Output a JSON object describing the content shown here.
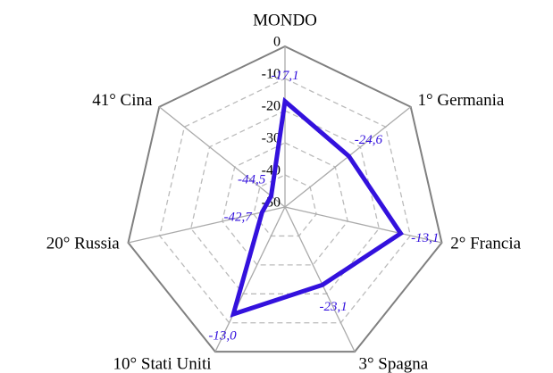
{
  "chart_data": {
    "type": "radar",
    "categories": [
      "MONDO",
      "1° Germania",
      "2° Francia",
      "3° Spagna",
      "10° Stati Uniti",
      "20° Russia",
      "41° Cina"
    ],
    "values": [
      -17.1,
      -24.6,
      -13.1,
      -23.1,
      -13.0,
      -42.7,
      -44.5
    ],
    "value_labels": [
      "-17,1",
      "-24,6",
      "-13,1",
      "-23,1",
      "-13,0",
      "-42,7",
      "-44,5"
    ],
    "color": "#3311dd",
    "rlim": [
      -50,
      0
    ],
    "rticks": [
      0,
      -10,
      -20,
      -30,
      -40,
      -50
    ],
    "grid": true
  }
}
